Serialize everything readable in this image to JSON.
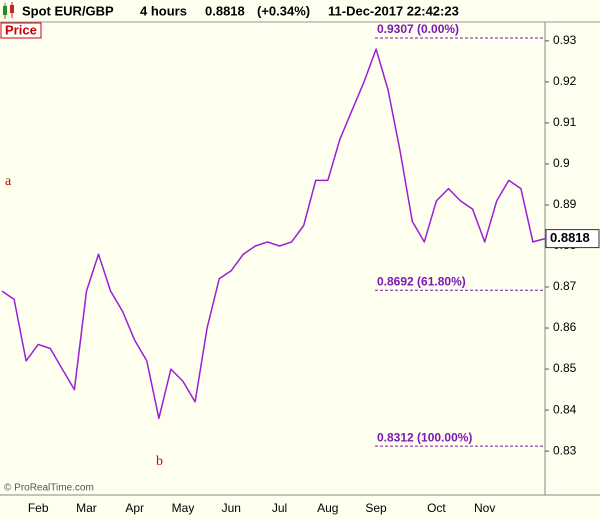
{
  "header": {
    "title": "Spot EUR/GBP",
    "interval": "4 hours",
    "change": "(+0.34%)",
    "datetime": "11-Dec-2017 22:42:23"
  },
  "panel_label": "Price",
  "watermark": "© ProRealTime.com",
  "chart_data": {
    "type": "line",
    "last_price": 0.8818,
    "categories": [
      null,
      null,
      null,
      "Feb",
      null,
      null,
      null,
      "Mar",
      null,
      null,
      null,
      "Apr",
      null,
      null,
      null,
      "May",
      null,
      null,
      null,
      "Jun",
      null,
      null,
      null,
      "Jul",
      null,
      null,
      null,
      "Aug",
      null,
      null,
      null,
      "Sep",
      null,
      null,
      null,
      null,
      "Oct",
      null,
      null,
      null,
      "Nov",
      null,
      null,
      null,
      null,
      null
    ],
    "series": [
      {
        "name": "Spot EUR/GBP",
        "color": "#9a1ed6",
        "values": [
          0.869,
          0.867,
          0.852,
          0.856,
          0.855,
          0.85,
          0.845,
          0.869,
          0.878,
          0.869,
          0.864,
          0.857,
          0.852,
          0.838,
          0.85,
          0.847,
          0.842,
          0.86,
          0.872,
          0.874,
          0.878,
          0.88,
          0.881,
          0.88,
          0.881,
          0.885,
          0.896,
          0.896,
          0.906,
          0.913,
          0.92,
          0.928,
          0.918,
          0.903,
          0.886,
          0.881,
          0.891,
          0.894,
          0.891,
          0.889,
          0.881,
          0.891,
          0.896,
          0.894,
          0.881,
          0.8818
        ]
      }
    ],
    "ylim": [
      0.8193,
      0.9346
    ],
    "yticks": [
      0.83,
      0.84,
      0.85,
      0.86,
      0.87,
      0.88,
      0.89,
      0.9,
      0.91,
      0.92,
      0.93
    ],
    "levels": [
      {
        "value": 0.9307,
        "label": "0.9307 (0.00%)"
      },
      {
        "value": 0.8692,
        "label": "0.8692 (61.80%)"
      },
      {
        "value": 0.8312,
        "label": "0.8312 (100.00%)"
      }
    ],
    "wave_labels": [
      "a",
      "b"
    ]
  }
}
